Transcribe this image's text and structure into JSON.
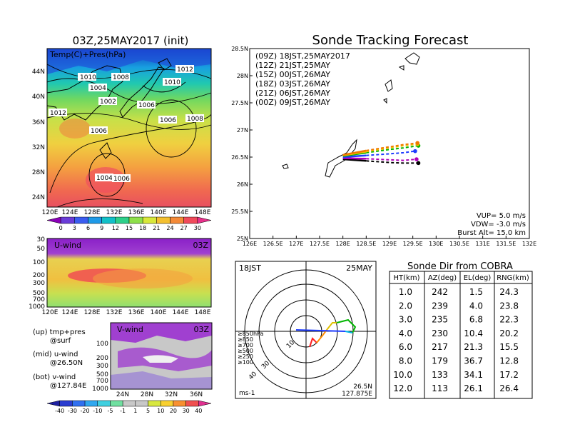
{
  "left": {
    "title": "03Z,25MAY2017 (init)",
    "map_label": "Temp(C)+Pres(hPa)",
    "lat_ticks": [
      "44N",
      "40N",
      "36N",
      "32N",
      "28N",
      "24N"
    ],
    "lon_ticks": [
      "120E",
      "124E",
      "128E",
      "132E",
      "136E",
      "140E",
      "144E",
      "148E"
    ],
    "isobar_labels": [
      "1010",
      "1008",
      "1012",
      "1004",
      "1010",
      "1002",
      "1006",
      "1012",
      "1006",
      "1006",
      "1008",
      "1004",
      "1006"
    ],
    "temp_scale": [
      "0",
      "3",
      "6",
      "9",
      "12",
      "15",
      "18",
      "21",
      "24",
      "27",
      "30"
    ],
    "temp_colors": [
      "#8a00b8",
      "#6a3cd8",
      "#3a5cf0",
      "#1f9ae8",
      "#12c0c8",
      "#2ed08a",
      "#8ee04a",
      "#d8e83a",
      "#f4c030",
      "#f48a38",
      "#f04a5a",
      "#e8308a"
    ],
    "uwind": {
      "label": "U-wind",
      "time": "03Z",
      "p_ticks": [
        "30",
        "50",
        "100",
        "200",
        "300",
        "500",
        "700",
        "1000"
      ],
      "lon_ticks": [
        "120E",
        "124E",
        "128E",
        "132E",
        "136E",
        "140E",
        "144E",
        "148E"
      ]
    },
    "vwind": {
      "label": "V-wind",
      "time": "03Z",
      "p_ticks": [
        "100",
        "200",
        "300",
        "500",
        "700",
        "1000"
      ],
      "lat_ticks": [
        "24N",
        "28N",
        "32N",
        "36N"
      ]
    },
    "notes": [
      {
        "head": "(up) tmp+pres",
        "sub": "@surf"
      },
      {
        "head": "(mid) u-wind",
        "sub": "@26.50N"
      },
      {
        "head": "(bot) v-wind",
        "sub": "@127.84E"
      }
    ],
    "wind_scale": [
      "-40",
      "-30",
      "-20",
      "-10",
      "-5",
      "-1",
      "1",
      "5",
      "10",
      "20",
      "30",
      "40"
    ],
    "wind_colors": [
      "#2a3cd0",
      "#3070f0",
      "#30a8f0",
      "#40d0e0",
      "#70e0a0",
      "#c8c8c8",
      "#c8c8c8",
      "#d8e840",
      "#f8d030",
      "#f89030",
      "#f05050",
      "#e03090"
    ]
  },
  "chart_data": [
    {
      "type": "line",
      "title": "Sonde Tracking Forecast",
      "xlim": [
        126,
        132
      ],
      "ylim": [
        25,
        28.5
      ],
      "x_ticks": [
        "126E",
        "126.5E",
        "127E",
        "127.5E",
        "128E",
        "128.5E",
        "129E",
        "129.5E",
        "130E",
        "130.5E",
        "131E",
        "131.5E",
        "132E"
      ],
      "y_ticks": [
        "28.5N",
        "28N",
        "27.5N",
        "27N",
        "26.5N",
        "26N",
        "25.5N",
        "25N"
      ],
      "series": [
        {
          "name": "(09Z)  18JST,25MAY2017",
          "color": "#000000",
          "points": [
            [
              128.0,
              26.46
            ],
            [
              128.5,
              26.43
            ],
            [
              129.0,
              26.4
            ],
            [
              129.3,
              26.39
            ],
            [
              129.62,
              26.39
            ]
          ]
        },
        {
          "name": "(12Z)  21JST,25MAY",
          "color": "#b000b8",
          "points": [
            [
              128.0,
              26.48
            ],
            [
              128.5,
              26.47
            ],
            [
              129.0,
              26.45
            ],
            [
              129.3,
              26.44
            ],
            [
              129.58,
              26.46
            ]
          ]
        },
        {
          "name": "(15Z)  00JST,26MAY",
          "color": "#1e3cff",
          "points": [
            [
              128.0,
              26.5
            ],
            [
              128.5,
              26.53
            ],
            [
              129.0,
              26.56
            ],
            [
              129.3,
              26.58
            ],
            [
              129.55,
              26.61
            ]
          ]
        },
        {
          "name": "(18Z)  03JST,26MAY",
          "color": "#00b400",
          "points": [
            [
              128.0,
              26.52
            ],
            [
              128.5,
              26.58
            ],
            [
              129.0,
              26.64
            ],
            [
              129.3,
              26.67
            ],
            [
              129.62,
              26.71
            ]
          ]
        },
        {
          "name": "(21Z)  06JST,26MAY",
          "color": "#f0c000",
          "points": [
            [
              128.0,
              26.53
            ],
            [
              128.5,
              26.6
            ],
            [
              129.0,
              26.67
            ],
            [
              129.3,
              26.71
            ],
            [
              129.6,
              26.74
            ]
          ]
        },
        {
          "name": "(00Z)  09JST,26MAY",
          "color": "#f07800",
          "points": [
            [
              128.0,
              26.54
            ],
            [
              128.5,
              26.62
            ],
            [
              129.0,
              26.69
            ],
            [
              129.3,
              26.73
            ],
            [
              129.6,
              26.76
            ]
          ]
        }
      ],
      "annotations": {
        "vup": "VUP=  5.0 m/s",
        "vdw": "VDW= -3.0 m/s",
        "burst": "Burst Alt=  15.0 km"
      }
    },
    {
      "type": "scatter",
      "title": "",
      "time_left": "18JST",
      "time_right": "25MAY",
      "unit": "ms-1",
      "position": "26.5N",
      "position2": "127.875E",
      "ring_labels": [
        "10",
        "30",
        "40"
      ],
      "levels": [
        {
          "label": "≥850hPa",
          "color": "#ff2020"
        },
        {
          "label": "≥850",
          "color": "#ff8c00"
        },
        {
          "label": "≥700",
          "color": "#e0c000"
        },
        {
          "label": "≥500",
          "color": "#00b400"
        },
        {
          "label": "≥250",
          "color": "#00b4e6"
        },
        {
          "label": "≥100",
          "color": "#1e3cff"
        }
      ]
    },
    {
      "type": "table",
      "title": "Sonde Dir from COBRA",
      "columns": [
        "HT(km)",
        "AZ(deg)",
        "EL(deg)",
        "RNG(km)"
      ],
      "rows": [
        [
          "1.0",
          "242",
          "1.5",
          "24.3"
        ],
        [
          "2.0",
          "239",
          "4.0",
          "23.8"
        ],
        [
          "3.0",
          "235",
          "6.8",
          "22.3"
        ],
        [
          "4.0",
          "230",
          "10.4",
          "20.2"
        ],
        [
          "6.0",
          "217",
          "21.3",
          "15.5"
        ],
        [
          "8.0",
          "179",
          "36.7",
          "12.8"
        ],
        [
          "10.0",
          "133",
          "34.1",
          "17.2"
        ],
        [
          "12.0",
          "113",
          "26.1",
          "26.4"
        ]
      ]
    }
  ]
}
